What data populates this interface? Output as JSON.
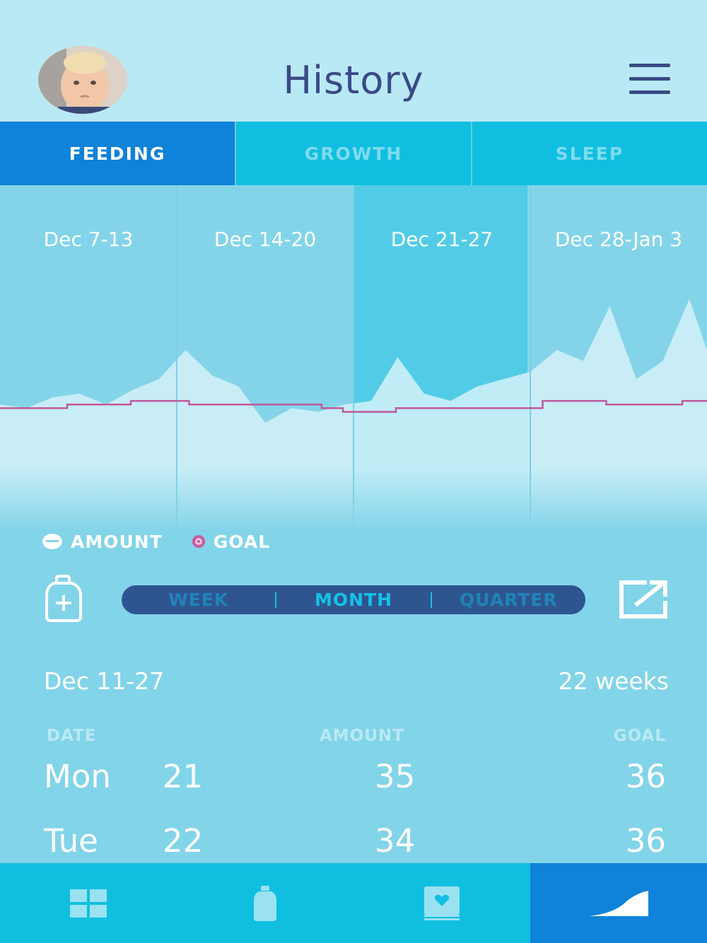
{
  "header": {
    "title": "History",
    "avatar_icon": "baby-avatar",
    "menu_icon": "hamburger-menu-icon"
  },
  "tabs": [
    {
      "label": "FEEDING",
      "active": true
    },
    {
      "label": "GROWTH",
      "active": false
    },
    {
      "label": "SLEEP",
      "active": false
    }
  ],
  "chart_data": {
    "type": "area",
    "categories": [
      "Dec 7-13",
      "Dec 14-20",
      "Dec 21-27",
      "Dec 28-Jan 3"
    ],
    "highlighted_category": "Dec 21-27",
    "series": [
      {
        "name": "AMOUNT",
        "x": [
          0,
          0.15,
          0.3,
          0.45,
          0.6,
          0.75,
          0.9,
          1.05,
          1.2,
          1.35,
          1.5,
          1.65,
          1.8,
          1.95,
          2.1,
          2.25,
          2.4,
          2.55,
          2.7,
          2.85,
          3.0,
          3.15,
          3.3,
          3.45,
          3.6,
          3.75,
          3.9,
          4.0
        ],
        "values": [
          33,
          32,
          35,
          36,
          33,
          37,
          40,
          48,
          41,
          38,
          28,
          32,
          31,
          33,
          34,
          46,
          36,
          34,
          38,
          40,
          42,
          48,
          45,
          60,
          40,
          45,
          62,
          48
        ]
      },
      {
        "name": "GOAL",
        "x": [
          0,
          0.38,
          0.38,
          0.74,
          0.74,
          1.07,
          1.07,
          1.82,
          1.82,
          1.94,
          1.94,
          2.24,
          2.24,
          3.07,
          3.07,
          3.43,
          3.43,
          3.86,
          3.86,
          4.0
        ],
        "values": [
          32,
          32,
          33,
          33,
          34,
          34,
          33,
          33,
          32,
          32,
          31,
          31,
          32,
          32,
          34,
          34,
          33,
          33,
          34,
          34
        ]
      }
    ],
    "legend": [
      "AMOUNT",
      "GOAL"
    ],
    "legend_placement": "bottom-left",
    "colors": {
      "amount": "#d4f1f8",
      "goal": "#c0589c",
      "highlight": "#52cce6",
      "panel": "#84d4e9"
    }
  },
  "legend": {
    "amount": "AMOUNT",
    "goal": "GOAL"
  },
  "controls": {
    "add_icon": "add-bottle-icon",
    "ranges": [
      "WEEK",
      "MONTH",
      "QUARTER"
    ],
    "active_range": "MONTH",
    "export_icon": "export-icon"
  },
  "summary": {
    "range": "Dec 11-27",
    "weeks": "22 weeks"
  },
  "table": {
    "headers": {
      "date": "DATE",
      "amount": "AMOUNT",
      "goal": "GOAL"
    },
    "rows": [
      {
        "day": "Mon",
        "date": "21",
        "amount": "35",
        "goal": "36"
      },
      {
        "day": "Tue",
        "date": "22",
        "amount": "34",
        "goal": "36"
      }
    ]
  },
  "bottom_nav": [
    {
      "icon": "dashboard-grid-icon",
      "active": false
    },
    {
      "icon": "bottle-icon",
      "active": false
    },
    {
      "icon": "journal-heart-icon",
      "active": false
    },
    {
      "icon": "history-chart-icon",
      "active": true
    }
  ]
}
